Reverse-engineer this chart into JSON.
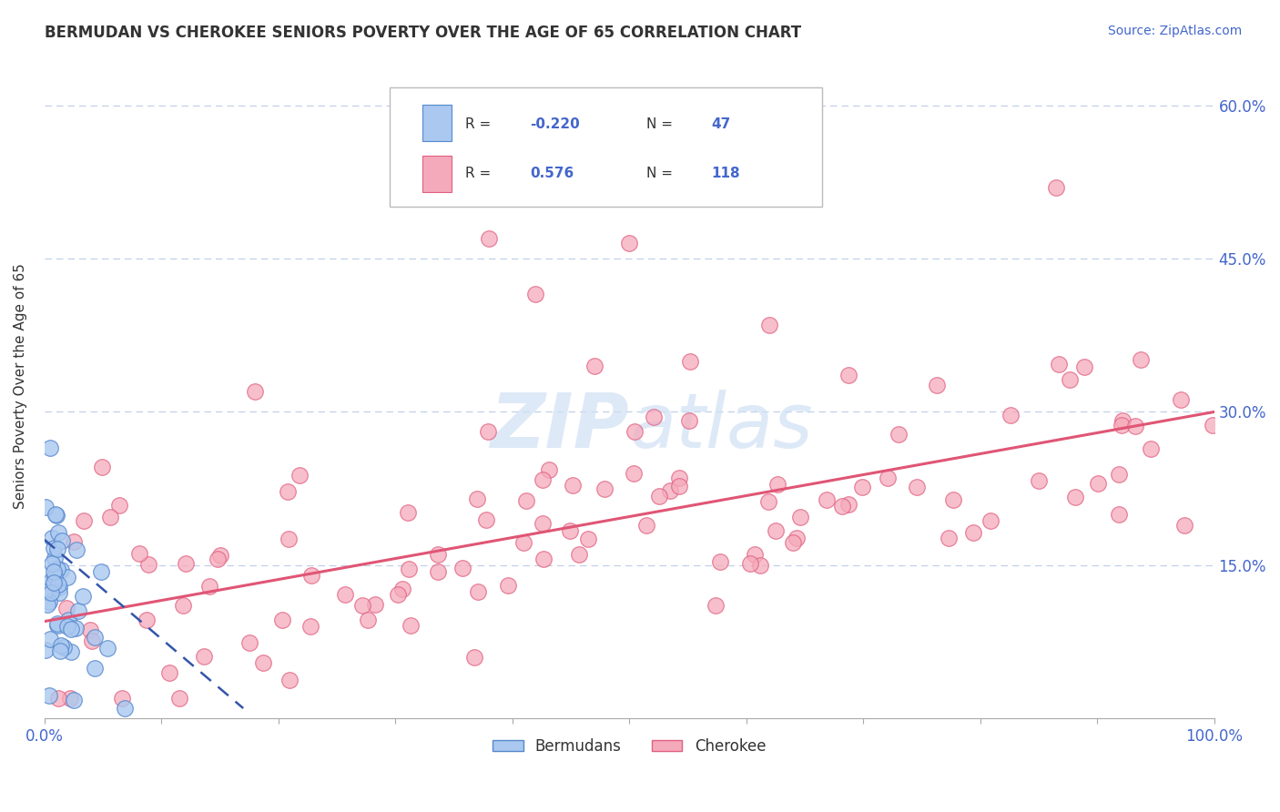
{
  "title": "BERMUDAN VS CHEROKEE SENIORS POVERTY OVER THE AGE OF 65 CORRELATION CHART",
  "source": "Source: ZipAtlas.com",
  "ylabel": "Seniors Poverty Over the Age of 65",
  "xlim": [
    0,
    1.0
  ],
  "ylim": [
    0,
    0.65
  ],
  "xticks": [
    0.0,
    0.1,
    0.2,
    0.3,
    0.4,
    0.5,
    0.6,
    0.7,
    0.8,
    0.9,
    1.0
  ],
  "ytick_positions": [
    0.0,
    0.15,
    0.3,
    0.45,
    0.6
  ],
  "yticklabels_right": [
    "",
    "15.0%",
    "30.0%",
    "45.0%",
    "60.0%"
  ],
  "legend_R1": "-0.220",
  "legend_N1": "47",
  "legend_R2": "0.576",
  "legend_N2": "118",
  "color_bermudans_fill": "#aac8f0",
  "color_bermudans_edge": "#5588cc",
  "color_cherokee_fill": "#f5aabb",
  "color_cherokee_edge": "#e06080",
  "color_line_bermudans": "#3355aa",
  "color_line_cherokee": "#e05575",
  "color_text_blue": "#4466cc",
  "color_text_dark": "#333333",
  "background_color": "#ffffff",
  "grid_color": "#c0d0e8",
  "watermark_color": "#d0e0f5",
  "watermark_alpha": 0.7
}
